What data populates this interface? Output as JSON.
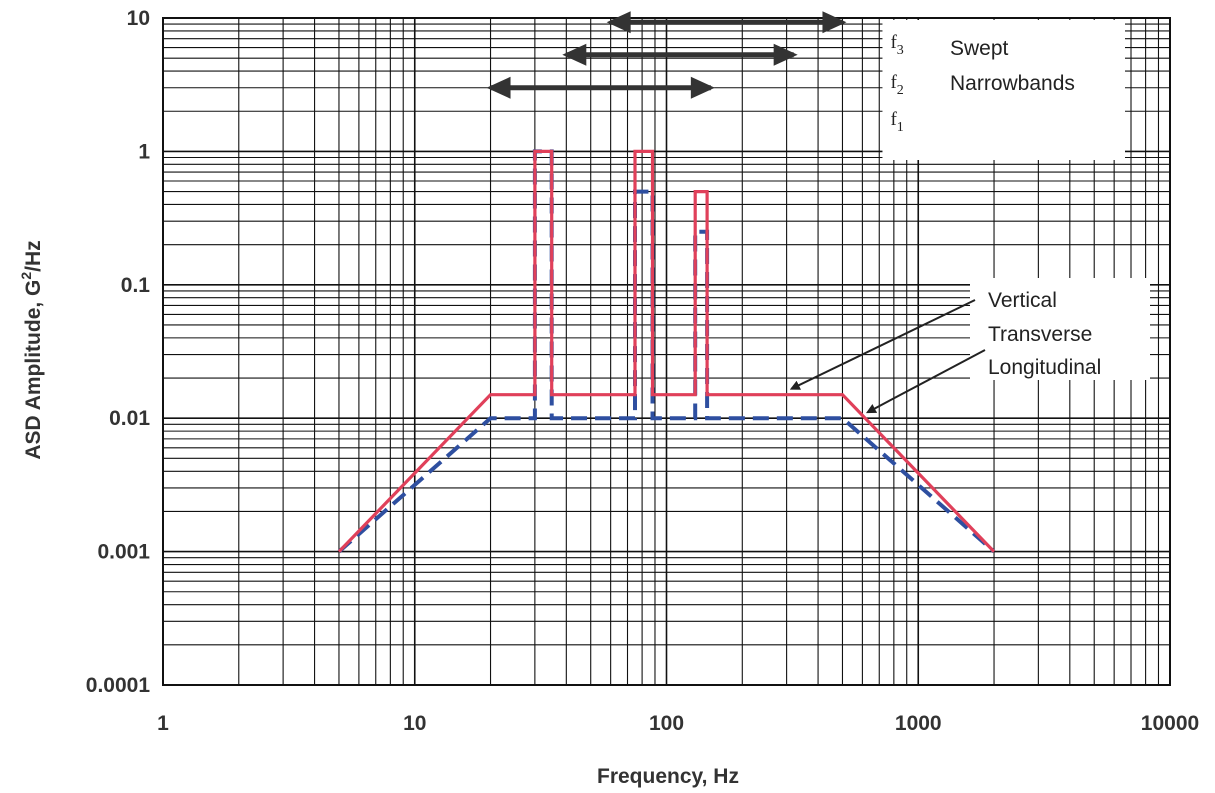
{
  "chart_data": {
    "type": "line",
    "xscale": "log",
    "yscale": "log",
    "xlim": [
      1,
      10000
    ],
    "ylim": [
      0.0001,
      10
    ],
    "xlabel": "Frequency, Hz",
    "ylabel_main": "ASD Amplitude, G",
    "ylabel_sup": "2",
    "ylabel_tail": "/Hz",
    "grid": true,
    "x_ticks": [
      "1",
      "10",
      "100",
      "1000",
      "10000"
    ],
    "y_ticks": [
      "0.0001",
      "0.001",
      "0.01",
      "0.1",
      "1",
      "10"
    ],
    "series": [
      {
        "key": "vertical",
        "color": "#e0405a",
        "style": "solid",
        "points": [
          [
            5,
            0.001
          ],
          [
            20,
            0.015
          ],
          [
            30,
            0.015
          ],
          [
            30,
            1
          ],
          [
            35,
            1
          ],
          [
            35,
            0.015
          ],
          [
            75,
            0.015
          ],
          [
            75,
            1
          ],
          [
            88,
            1
          ],
          [
            88,
            0.015
          ],
          [
            130,
            0.015
          ],
          [
            130,
            0.5
          ],
          [
            145,
            0.5
          ],
          [
            145,
            0.015
          ],
          [
            500,
            0.015
          ],
          [
            2000,
            0.001
          ]
        ]
      },
      {
        "key": "transverse_longitudinal",
        "color": "#2e4fa0",
        "style": "dashed",
        "points": [
          [
            5,
            0.001
          ],
          [
            20,
            0.01
          ],
          [
            30,
            0.01
          ],
          [
            30,
            1
          ],
          [
            35,
            1
          ],
          [
            35,
            0.01
          ],
          [
            75,
            0.01
          ],
          [
            75,
            0.5
          ],
          [
            88,
            0.5
          ],
          [
            88,
            0.01
          ],
          [
            130,
            0.01
          ],
          [
            130,
            0.25
          ],
          [
            145,
            0.25
          ],
          [
            145,
            0.01
          ],
          [
            500,
            0.01
          ],
          [
            2000,
            0.001
          ]
        ]
      }
    ],
    "swept_bands": [
      {
        "label": "f3",
        "x": [
          60,
          500
        ],
        "y": 9.3
      },
      {
        "label": "f2",
        "x": [
          40,
          320
        ],
        "y": 5.3
      },
      {
        "label": "f1",
        "x": [
          20,
          150
        ],
        "y": 3.0
      }
    ],
    "band_labels": [
      {
        "base": "f",
        "sub": "3"
      },
      {
        "base": "f",
        "sub": "2"
      },
      {
        "base": "f",
        "sub": "1"
      }
    ],
    "annotations": {
      "swept_line1": "Swept",
      "swept_line2": "Narrowbands",
      "legend_lines": [
        "Vertical",
        "Transverse",
        "Longitudinal"
      ],
      "arrow_targets": [
        [
          300,
          0.015
        ],
        [
          630,
          0.01
        ]
      ]
    }
  }
}
